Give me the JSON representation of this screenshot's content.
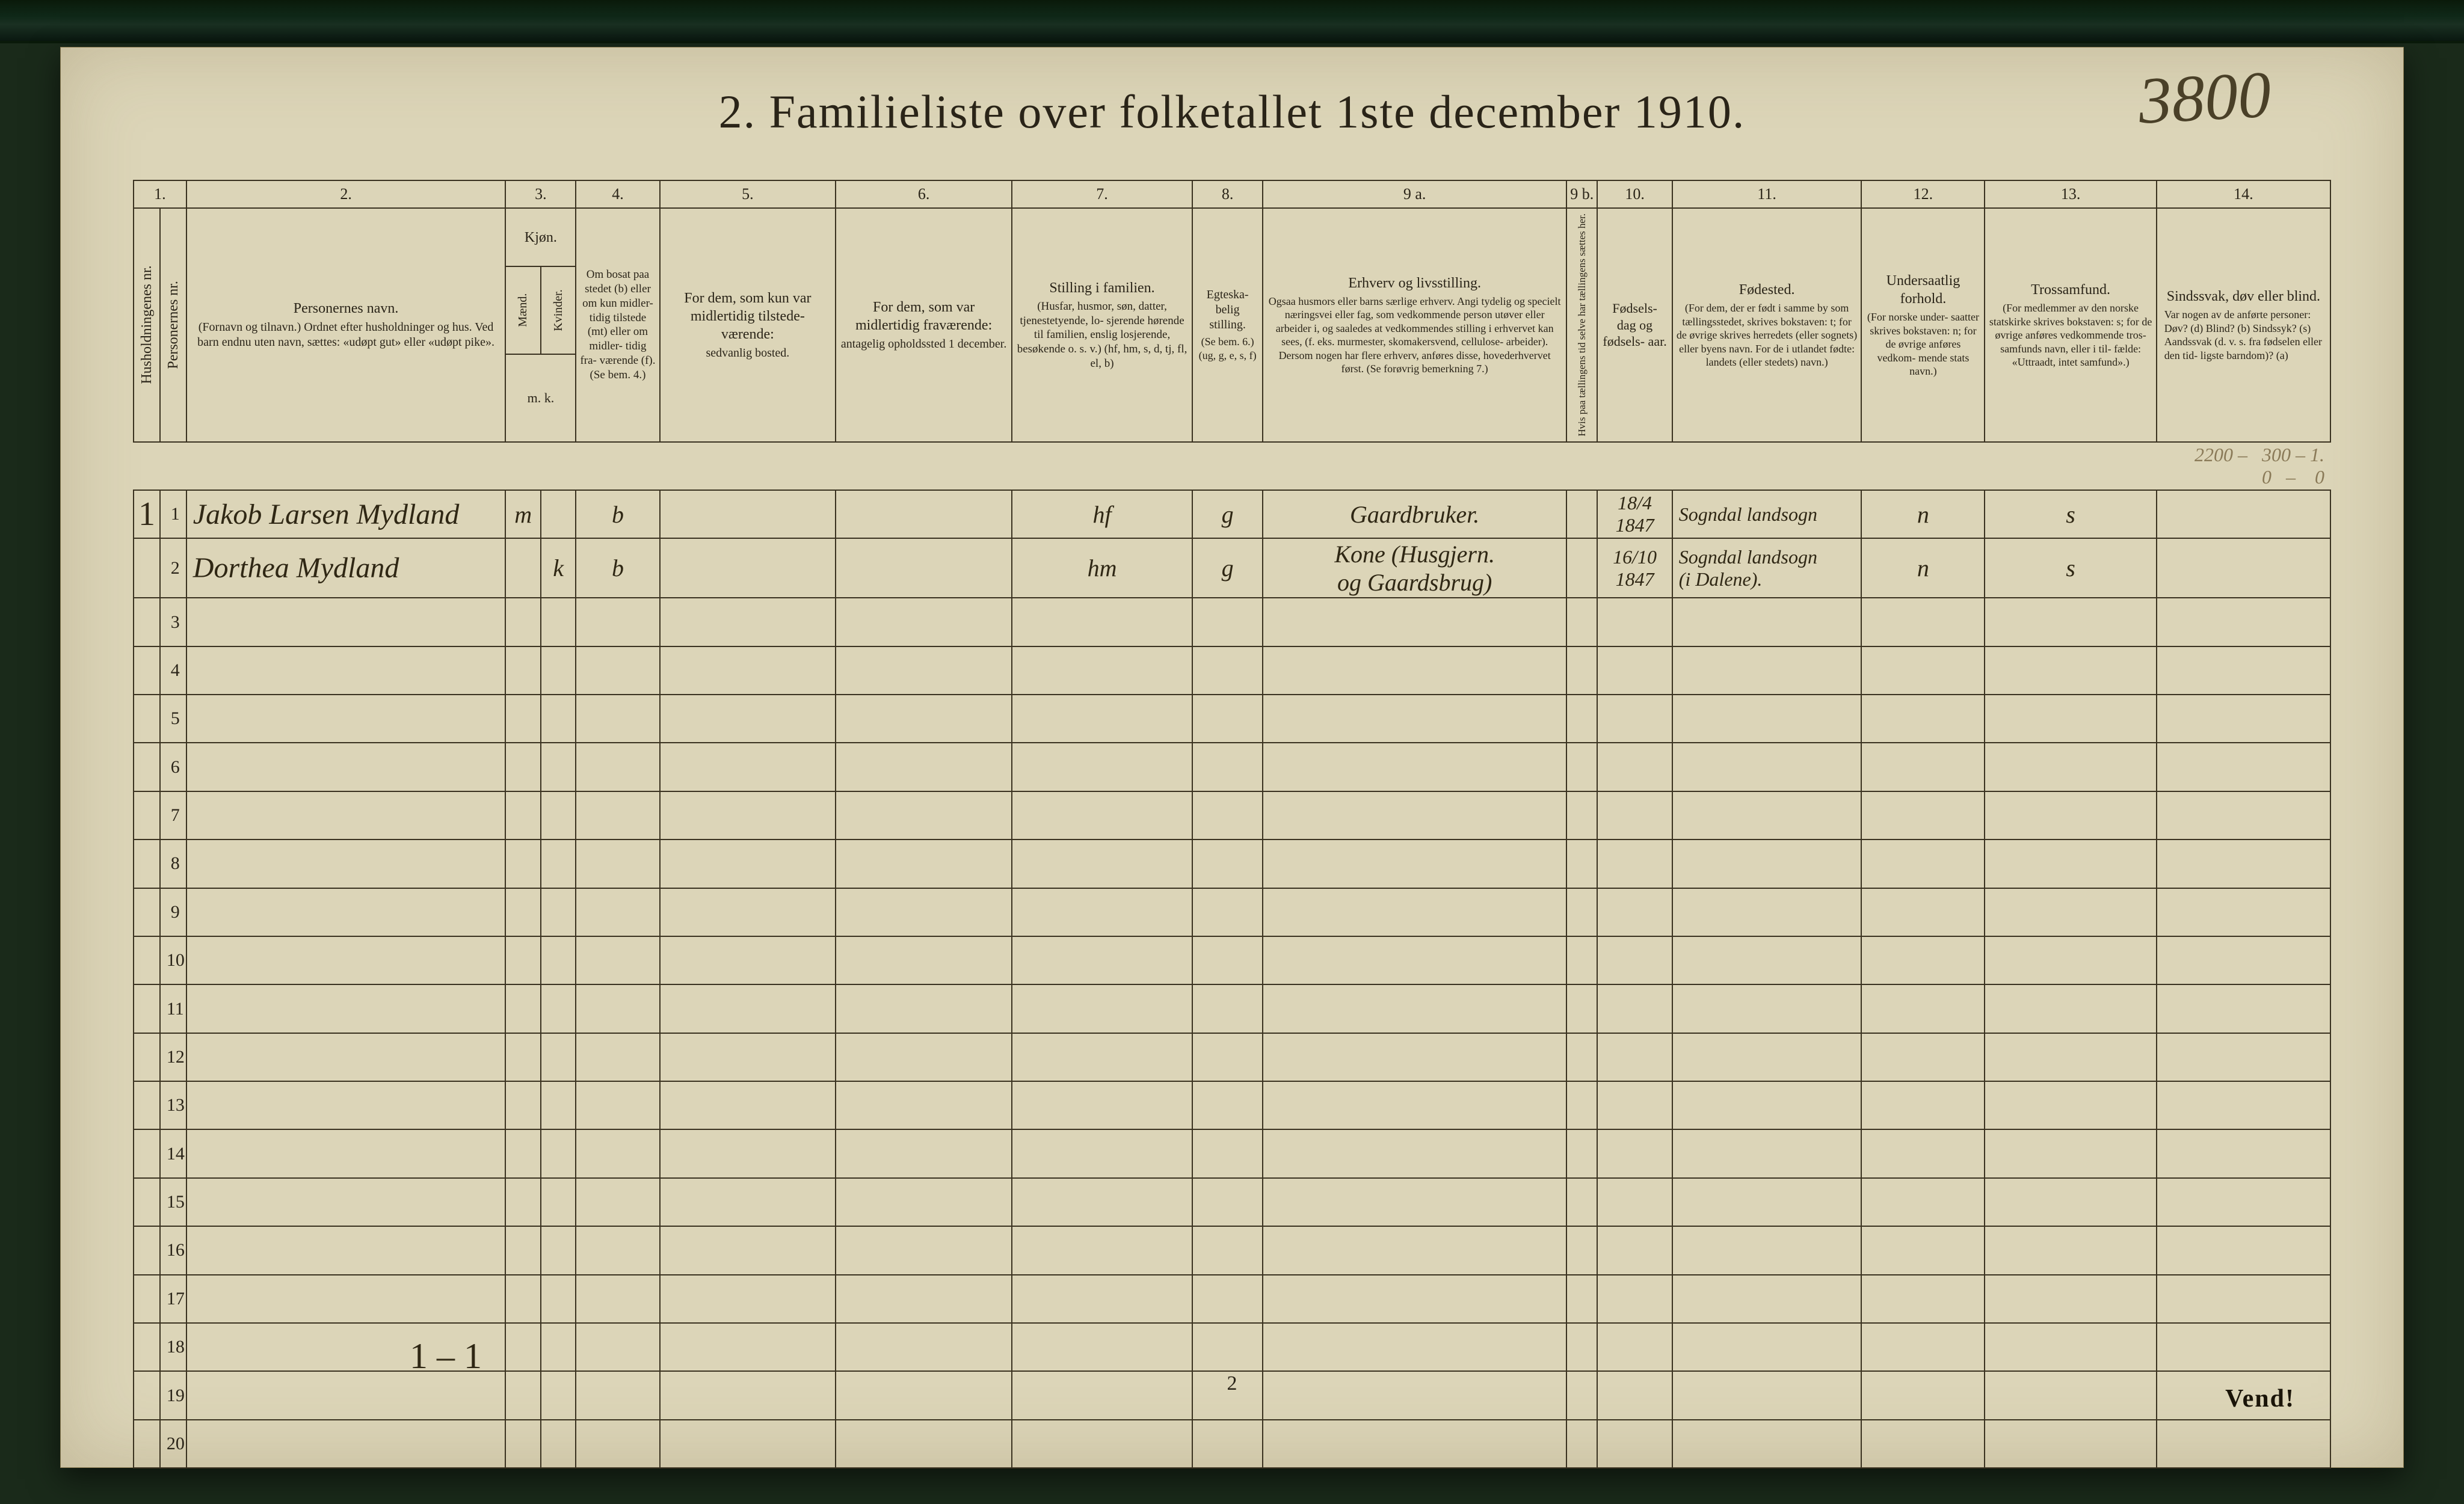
{
  "page": {
    "title": "2.   Familieliste over folketallet 1ste december 1910.",
    "top_right_handwritten": "3800",
    "page_number_bottom": "2",
    "vend": "Vend!",
    "bottom_tally": "1 – 1"
  },
  "columns": {
    "numbers": [
      "1.",
      "2.",
      "3.",
      "4.",
      "5.",
      "6.",
      "7.",
      "8.",
      "9 a.",
      "9 b.",
      "10.",
      "11.",
      "12.",
      "13.",
      "14."
    ],
    "c1_vert_a": "Husholdningenes nr.",
    "c1_vert_b": "Personernes nr.",
    "c2": {
      "title": "Personernes navn.",
      "sub": "(Fornavn og tilnavn.)\nOrdnet efter husholdninger og hus.\nVed barn endnu uten navn, sættes: «udøpt gut»\neller «udøpt pike»."
    },
    "c3": {
      "title": "Kjøn.",
      "sub_m": "Mænd.",
      "sub_k": "Kvinder.",
      "foot": "m.   k."
    },
    "c4": {
      "title": "Om bosat\npaa stedet\n(b) eller om\nkun midler-\ntidig tilstede\n(mt) eller\nom midler-\ntidig fra-\nværende (f).\n(Se bem. 4.)"
    },
    "c5": {
      "title": "For dem, som kun var\nmidlertidig tilstede-\nværende:",
      "sub": "sedvanlig bosted."
    },
    "c6": {
      "title": "For dem, som var\nmidlertidig\nfraværende:",
      "sub": "antagelig opholdssted\n1 december."
    },
    "c7": {
      "title": "Stilling i familien.",
      "sub": "(Husfar, husmor, søn,\ndatter, tjenestetyende, lo-\nsjerende hørende til familien,\nenslig losjerende, besøkende\no. s. v.)\n(hf, hm, s, d, tj, fl,\nel, b)"
    },
    "c8": {
      "title": "Egteska-\nbelig\nstilling.",
      "sub": "(Se bem. 6.)\n(ug, g,\ne, s, f)"
    },
    "c9a": {
      "title": "Erhverv og livsstilling.",
      "sub": "Ogsaa husmors eller barns særlige erhverv.\nAngi tydelig og specielt næringsvei eller fag, som\nvedkommende person utøver eller arbeider i,\nog saaledes at vedkommendes stilling i erhvervet kan\nsees, (f. eks. murmester, skomakersvend, cellulose-\narbeider).  Dersom nogen har flere erhverv,\nanføres disse, hovederhvervet først.\n(Se forøvrig bemerkning 7.)"
    },
    "c9b_vert": "Hvis paa tællingens tid selve\nhar tællingens sættes her.",
    "c10": {
      "title": "Fødsels-\ndag\nog\nfødsels-\naar."
    },
    "c11": {
      "title": "Fødested.",
      "sub": "(For dem, der er født\ni samme by som\ntællingsstedet,\nskrives bokstaven: t;\nfor de øvrige skrives\nherredets (eller sognets)\neller byens navn.\nFor de i utlandet fødte:\nlandets (eller stedets)\nnavn.)"
    },
    "c12": {
      "title": "Undersaatlig\nforhold.",
      "sub": "(For norske under-\nsaatter skrives\nbokstaven: n;\nfor de øvrige\nanføres vedkom-\nmende stats navn.)"
    },
    "c13": {
      "title": "Trossamfund.",
      "sub": "(For medlemmer av\nden norske statskirke\nskrives bokstaven: s;\nfor de øvrige anføres\nvedkommende tros-\nsamfunds navn, eller i til-\nfælde: «Uttraadt, intet\nsamfund».)"
    },
    "c14": {
      "title": "Sindssvak, døv\neller blind.",
      "sub": "Var nogen av de anførte\npersoner:\nDøv?       (d)\nBlind?     (b)\nSindssyk?  (s)\nAandssvak (d. v. s. fra\nfødselen eller den tid-\nligste barndom)?  (a)"
    },
    "pencil_header": "2200 –   300 – 1.\n    0   –    0"
  },
  "rows": [
    {
      "hh": "1",
      "pnr": "1",
      "name": "Jakob Larsen Mydland",
      "sex_m": "m",
      "sex_k": "",
      "res": "b",
      "c5": "",
      "c6": "",
      "family_pos": "hf",
      "marital": "g",
      "occupation": "Gaardbruker.",
      "birth": "18/4\n1847",
      "birthplace": "Sogndal landsogn",
      "nationality": "n",
      "faith": "s",
      "c14": ""
    },
    {
      "hh": "",
      "pnr": "2",
      "name": "Dorthea   Mydland",
      "sex_m": "",
      "sex_k": "k",
      "res": "b",
      "c5": "",
      "c6": "",
      "family_pos": "hm",
      "marital": "g",
      "occupation": "Kone (Husgjern.\nog Gaardsbrug)",
      "birth": "16/10\n1847",
      "birthplace": "Sogndal landsogn\n(i Dalene).",
      "nationality": "n",
      "faith": "s",
      "c14": ""
    }
  ],
  "row_numbers": [
    "1",
    "2",
    "3",
    "4",
    "5",
    "6",
    "7",
    "8",
    "9",
    "10",
    "11",
    "12",
    "13",
    "14",
    "15",
    "16",
    "17",
    "18",
    "19",
    "20"
  ],
  "colors": {
    "paper": "#dcd5b8",
    "ink": "#2a2418",
    "rule": "#3a3220",
    "hand": "#2f2714",
    "pencil": "#8a7a58",
    "top_strip": "#0f2818"
  }
}
